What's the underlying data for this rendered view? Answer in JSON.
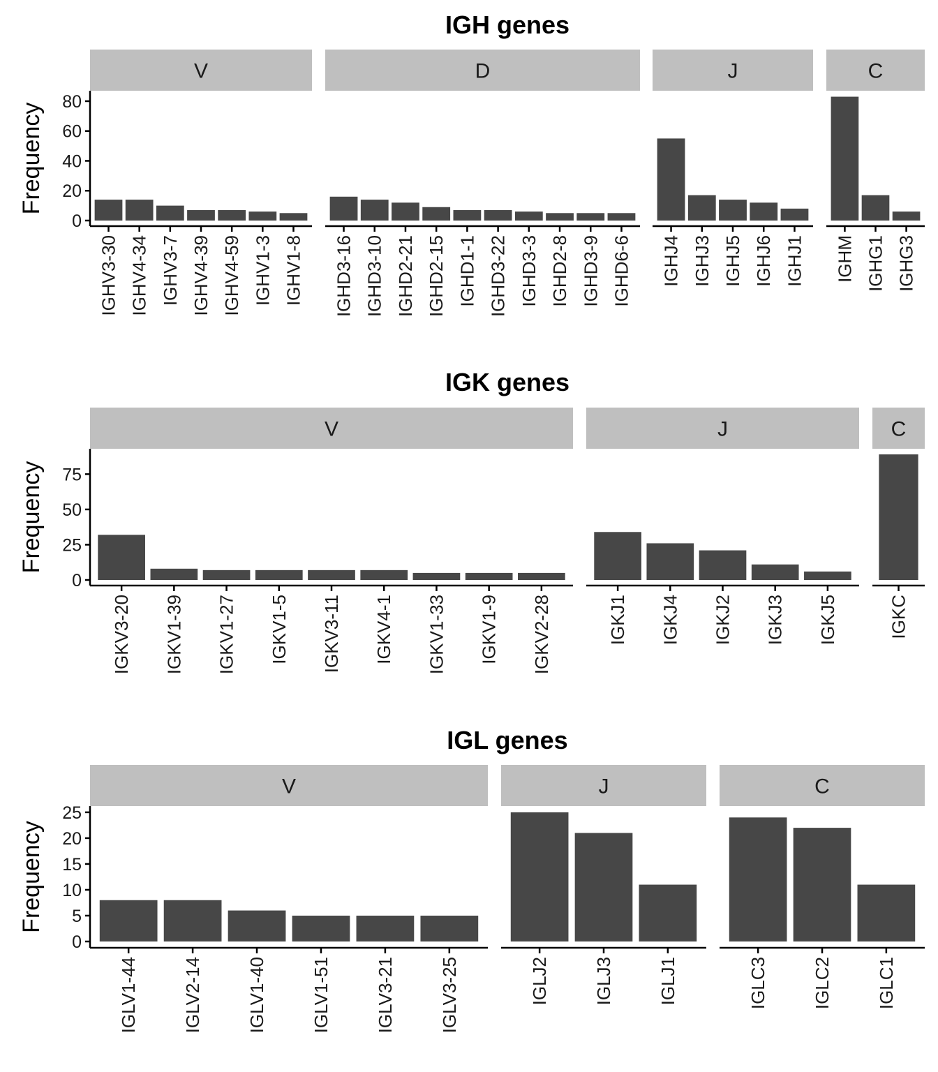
{
  "chart_data": [
    {
      "type": "bar",
      "title": "IGH genes",
      "ylabel": "Frequency",
      "ylim": [
        0,
        87
      ],
      "yticks": [
        0,
        20,
        40,
        60,
        80
      ],
      "facets": [
        {
          "label": "V",
          "categories": [
            "IGHV3-30",
            "IGHV4-34",
            "IGHV3-7",
            "IGHV4-39",
            "IGHV4-59",
            "IGHV1-3",
            "IGHV1-8"
          ],
          "values": [
            14,
            14,
            10,
            7,
            7,
            6,
            5
          ]
        },
        {
          "label": "D",
          "categories": [
            "IGHD3-16",
            "IGHD3-10",
            "IGHD2-21",
            "IGHD2-15",
            "IGHD1-1",
            "IGHD3-22",
            "IGHD3-3",
            "IGHD2-8",
            "IGHD3-9",
            "IGHD6-6"
          ],
          "values": [
            16,
            14,
            12,
            9,
            7,
            7,
            6,
            5,
            5,
            5
          ]
        },
        {
          "label": "J",
          "categories": [
            "IGHJ4",
            "IGHJ3",
            "IGHJ5",
            "IGHJ6",
            "IGHJ1"
          ],
          "values": [
            55,
            17,
            14,
            12,
            8
          ]
        },
        {
          "label": "C",
          "categories": [
            "IGHM",
            "IGHG1",
            "IGHG3"
          ],
          "values": [
            83,
            17,
            6
          ]
        }
      ]
    },
    {
      "type": "bar",
      "title": "IGK genes",
      "ylabel": "Frequency",
      "ylim": [
        0,
        93
      ],
      "yticks": [
        0,
        25,
        50,
        75
      ],
      "facets": [
        {
          "label": "V",
          "categories": [
            "IGKV3-20",
            "IGKV1-39",
            "IGKV1-27",
            "IGKV1-5",
            "IGKV3-11",
            "IGKV4-1",
            "IGKV1-33",
            "IGKV1-9",
            "IGKV2-28"
          ],
          "values": [
            32,
            8,
            7,
            7,
            7,
            7,
            5,
            5,
            5
          ]
        },
        {
          "label": "J",
          "categories": [
            "IGKJ1",
            "IGKJ4",
            "IGKJ2",
            "IGKJ3",
            "IGKJ5"
          ],
          "values": [
            34,
            26,
            21,
            11,
            6
          ]
        },
        {
          "label": "C",
          "categories": [
            "IGKC"
          ],
          "values": [
            89
          ]
        }
      ]
    },
    {
      "type": "bar",
      "title": "IGL genes",
      "ylabel": "Frequency",
      "ylim": [
        0,
        26.2
      ],
      "yticks": [
        0,
        5,
        10,
        15,
        20,
        25
      ],
      "facets": [
        {
          "label": "V",
          "categories": [
            "IGLV1-44",
            "IGLV2-14",
            "IGLV1-40",
            "IGLV1-51",
            "IGLV3-21",
            "IGLV3-25"
          ],
          "values": [
            8,
            8,
            6,
            5,
            5,
            5
          ]
        },
        {
          "label": "J",
          "categories": [
            "IGLJ2",
            "IGLJ3",
            "IGLJ1"
          ],
          "values": [
            25,
            21,
            11
          ]
        },
        {
          "label": "C",
          "categories": [
            "IGLC3",
            "IGLC2",
            "IGLC1"
          ],
          "values": [
            24,
            22,
            11
          ]
        }
      ]
    }
  ]
}
